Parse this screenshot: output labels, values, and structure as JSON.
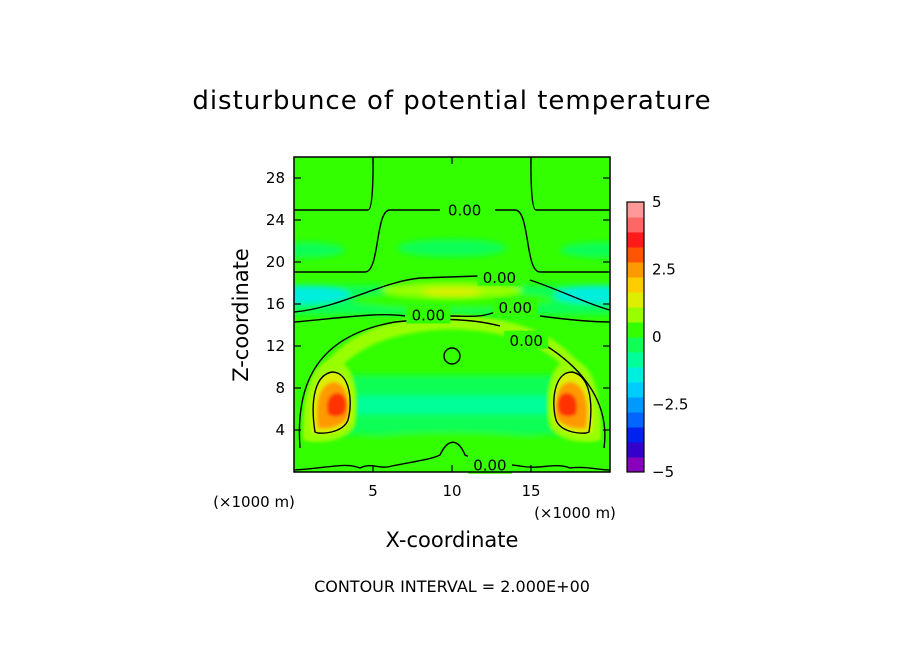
{
  "title": "disturbunce of potential temperature",
  "footer": "CONTOUR INTERVAL = 2.000E+00",
  "chart_data": {
    "type": "heatmap",
    "title": "disturbunce of potential temperature",
    "xlabel": "X-coordinate",
    "ylabel": "Z-coordinate",
    "x_unit_label": "(×1000 m)",
    "y_unit_label": "(×1000 m)",
    "xlim": [
      0,
      20
    ],
    "ylim": [
      0,
      30
    ],
    "x_ticks": [
      5,
      10,
      15
    ],
    "y_ticks": [
      4,
      8,
      12,
      16,
      20,
      24,
      28
    ],
    "contour_interval": 2.0,
    "contour_labels": [
      "0.00",
      "0.00",
      "0.00",
      "0.00",
      "0.00",
      "0.00"
    ],
    "colorbar": {
      "range": [
        -5,
        5
      ],
      "tick_labels": [
        "5",
        "2.5",
        "0",
        "−2.5",
        "−5"
      ],
      "tick_values": [
        5,
        2.5,
        0,
        -2.5,
        -5
      ],
      "colors": [
        "#8800bb",
        "#3300cc",
        "#0022ee",
        "#0066ff",
        "#0099ff",
        "#00ccff",
        "#00eedd",
        "#00ff99",
        "#11ff55",
        "#33ff00",
        "#99ff00",
        "#ddee00",
        "#ffcc00",
        "#ff9900",
        "#ff5500",
        "#ff1a1a",
        "#ff6666",
        "#ff9999"
      ]
    },
    "features": [
      {
        "name": "left warm anomaly",
        "x": 2.8,
        "z": 6.5,
        "max": 3.0
      },
      {
        "name": "right warm anomaly",
        "x": 17.2,
        "z": 6.5,
        "max": 3.0
      },
      {
        "name": "upper warm band",
        "x": 10,
        "z": 17,
        "max": 1.0
      },
      {
        "name": "cool layer left",
        "x": 0.5,
        "z": 17,
        "min": -1.5
      },
      {
        "name": "cool layer right",
        "x": 19.5,
        "z": 17,
        "min": -1.5
      },
      {
        "name": "cool layer mid",
        "x": 10,
        "z": 6.5,
        "min": -0.8
      }
    ]
  }
}
